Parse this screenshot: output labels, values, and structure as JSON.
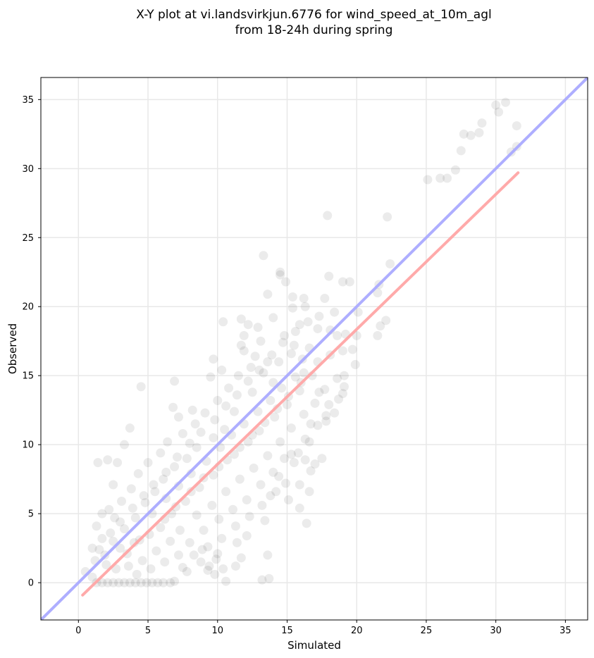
{
  "chart_data": {
    "type": "scatter",
    "title_line1": "X-Y plot at vi.landsvirkjun.6776 for wind_speed_at_10m_agl",
    "title_line2": "from 18-24h during spring",
    "xlabel": "Simulated",
    "ylabel": "Observed",
    "xlim": [
      -2.7,
      36.6
    ],
    "ylim": [
      -2.7,
      36.6
    ],
    "xticks": [
      0,
      5,
      10,
      15,
      20,
      25,
      30,
      35
    ],
    "yticks": [
      0,
      5,
      10,
      15,
      20,
      25,
      30,
      35
    ],
    "grid": true,
    "colors": {
      "points": "#000000",
      "identity_line": "#aaaaff",
      "fit_line": "#ffa5a5"
    },
    "identity_line": {
      "name": "",
      "x": [
        -2.7,
        36.6
      ],
      "y": [
        -2.7,
        36.6
      ]
    },
    "fit_line": {
      "name": "",
      "x": [
        0.3,
        31.6
      ],
      "y": [
        -0.9,
        29.7
      ]
    },
    "series": [
      {
        "name": "",
        "points": [
          [
            30.7,
            34.8
          ],
          [
            30.0,
            34.6
          ],
          [
            30.2,
            34.1
          ],
          [
            31.5,
            33.1
          ],
          [
            29.0,
            33.3
          ],
          [
            28.8,
            32.6
          ],
          [
            27.7,
            32.5
          ],
          [
            28.2,
            32.4
          ],
          [
            31.5,
            31.6
          ],
          [
            31.1,
            31.2
          ],
          [
            27.5,
            31.3
          ],
          [
            27.1,
            29.9
          ],
          [
            26.5,
            29.3
          ],
          [
            25.1,
            29.2
          ],
          [
            26.0,
            29.3
          ],
          [
            17.9,
            26.6
          ],
          [
            22.2,
            26.5
          ],
          [
            22.4,
            23.1
          ],
          [
            13.3,
            23.7
          ],
          [
            14.5,
            22.5
          ],
          [
            14.5,
            22.3
          ],
          [
            18.0,
            22.2
          ],
          [
            14.9,
            21.8
          ],
          [
            19.0,
            21.8
          ],
          [
            19.5,
            21.8
          ],
          [
            21.6,
            21.6
          ],
          [
            21.5,
            21.0
          ],
          [
            13.6,
            20.9
          ],
          [
            15.4,
            20.7
          ],
          [
            16.2,
            20.6
          ],
          [
            17.7,
            20.6
          ],
          [
            16.3,
            20.0
          ],
          [
            15.4,
            19.9
          ],
          [
            18.4,
            19.6
          ],
          [
            20.1,
            19.6
          ],
          [
            10.4,
            18.9
          ],
          [
            11.7,
            19.1
          ],
          [
            12.2,
            18.7
          ],
          [
            17.2,
            18.4
          ],
          [
            18.1,
            18.3
          ],
          [
            22.1,
            19.0
          ],
          [
            21.7,
            18.6
          ],
          [
            21.5,
            17.9
          ],
          [
            20.0,
            17.9
          ],
          [
            19.2,
            18.0
          ],
          [
            18.6,
            17.9
          ],
          [
            19.7,
            16.9
          ],
          [
            19.0,
            16.8
          ],
          [
            19.9,
            15.8
          ],
          [
            19.1,
            15.0
          ],
          [
            18.6,
            14.8
          ],
          [
            19.1,
            14.2
          ],
          [
            19.0,
            13.7
          ],
          [
            18.7,
            13.3
          ],
          [
            16.2,
            15.2
          ],
          [
            17.3,
            13.8
          ],
          [
            18.0,
            12.9
          ],
          [
            18.4,
            12.3
          ],
          [
            17.8,
            12.1
          ],
          [
            17.8,
            11.7
          ],
          [
            17.2,
            11.4
          ],
          [
            16.7,
            11.5
          ],
          [
            16.3,
            10.4
          ],
          [
            16.6,
            10.2
          ],
          [
            15.3,
            9.3
          ],
          [
            15.8,
            9.4
          ],
          [
            16.3,
            8.9
          ],
          [
            15.5,
            8.7
          ],
          [
            16.7,
            8.1
          ],
          [
            17.0,
            8.6
          ],
          [
            17.5,
            9.0
          ],
          [
            16.6,
            6.6
          ],
          [
            15.9,
            7.1
          ],
          [
            16.4,
            4.3
          ],
          [
            15.9,
            5.4
          ],
          [
            14.9,
            7.2
          ],
          [
            13.8,
            6.3
          ],
          [
            13.4,
            4.5
          ],
          [
            14.4,
            7.7
          ],
          [
            15.1,
            6.0
          ],
          [
            13.6,
            2.0
          ],
          [
            13.7,
            0.3
          ],
          [
            13.2,
            0.2
          ],
          [
            11.7,
            1.8
          ],
          [
            11.4,
            2.9
          ],
          [
            12.1,
            3.4
          ],
          [
            11.3,
            1.2
          ],
          [
            10.4,
            1.0
          ],
          [
            10.6,
            0.1
          ],
          [
            10.0,
            2.1
          ],
          [
            9.8,
            0.6
          ],
          [
            9.4,
            1.2
          ],
          [
            9.3,
            0.9
          ],
          [
            8.9,
            2.4
          ],
          [
            7.5,
            1.1
          ],
          [
            6.9,
            0.1
          ],
          [
            6.6,
            0.0
          ],
          [
            6.1,
            0.0
          ],
          [
            5.7,
            0.0
          ],
          [
            5.3,
            0.0
          ],
          [
            4.9,
            0.0
          ],
          [
            4.5,
            0.0
          ],
          [
            4.1,
            0.0
          ],
          [
            3.7,
            0.0
          ],
          [
            3.3,
            0.0
          ],
          [
            2.9,
            0.0
          ],
          [
            2.5,
            0.0
          ],
          [
            2.1,
            0.0
          ],
          [
            1.7,
            0.0
          ],
          [
            1.3,
            0.0
          ],
          [
            1.0,
            0.4
          ],
          [
            0.5,
            0.8
          ],
          [
            1.2,
            1.6
          ],
          [
            1.0,
            2.5
          ],
          [
            1.7,
            3.2
          ],
          [
            1.3,
            4.1
          ],
          [
            1.7,
            5.0
          ],
          [
            2.2,
            5.3
          ],
          [
            2.5,
            7.1
          ],
          [
            2.1,
            8.9
          ],
          [
            1.4,
            8.7
          ],
          [
            2.8,
            8.7
          ],
          [
            3.3,
            10.0
          ],
          [
            3.7,
            11.2
          ],
          [
            4.5,
            14.2
          ],
          [
            6.9,
            14.6
          ],
          [
            7.2,
            12.0
          ],
          [
            6.8,
            12.7
          ],
          [
            8.2,
            12.5
          ],
          [
            9.5,
            14.9
          ],
          [
            9.7,
            16.2
          ],
          [
            10.3,
            15.4
          ],
          [
            11.7,
            17.2
          ],
          [
            11.9,
            16.8
          ],
          [
            12.7,
            16.4
          ],
          [
            13.1,
            17.5
          ],
          [
            13.6,
            16.0
          ],
          [
            14.0,
            14.5
          ],
          [
            14.8,
            17.9
          ],
          [
            15.5,
            17.2
          ],
          [
            16.6,
            17.0
          ],
          [
            12.5,
            13.8
          ],
          [
            11.2,
            12.4
          ],
          [
            10.5,
            11.1
          ],
          [
            9.7,
            10.5
          ],
          [
            8.5,
            9.8
          ],
          [
            7.8,
            9.0
          ],
          [
            6.9,
            8.4
          ],
          [
            6.1,
            7.5
          ],
          [
            5.5,
            6.6
          ],
          [
            4.8,
            5.8
          ],
          [
            4.1,
            4.7
          ],
          [
            3.3,
            3.9
          ],
          [
            2.5,
            3.0
          ],
          [
            1.9,
            2.0
          ],
          [
            3.0,
            2.5
          ],
          [
            4.0,
            2.9
          ],
          [
            5.1,
            3.5
          ],
          [
            6.2,
            4.6
          ],
          [
            7.0,
            5.5
          ],
          [
            8.1,
            6.6
          ],
          [
            9.0,
            7.6
          ],
          [
            10.1,
            8.4
          ],
          [
            11.2,
            9.3
          ],
          [
            12.2,
            10.2
          ],
          [
            13.0,
            11.0
          ],
          [
            14.1,
            12.0
          ],
          [
            15.0,
            12.9
          ],
          [
            15.9,
            13.9
          ],
          [
            16.8,
            15.0
          ],
          [
            5.9,
            9.4
          ],
          [
            5.0,
            8.7
          ],
          [
            4.3,
            7.9
          ],
          [
            3.8,
            6.8
          ],
          [
            3.1,
            5.9
          ],
          [
            2.6,
            4.7
          ],
          [
            6.4,
            10.2
          ],
          [
            7.5,
            10.8
          ],
          [
            8.4,
            11.5
          ],
          [
            9.1,
            12.3
          ],
          [
            10.0,
            13.2
          ],
          [
            10.8,
            14.1
          ],
          [
            11.5,
            15.0
          ],
          [
            12.4,
            15.6
          ],
          [
            13.3,
            15.2
          ],
          [
            14.4,
            16.0
          ],
          [
            15.3,
            16.6
          ],
          [
            16.1,
            16.2
          ],
          [
            17.2,
            16.0
          ],
          [
            18.1,
            16.5
          ],
          [
            7.3,
            3.8
          ],
          [
            8.5,
            4.9
          ],
          [
            9.6,
            5.6
          ],
          [
            10.6,
            6.6
          ],
          [
            11.6,
            7.5
          ],
          [
            12.6,
            8.3
          ],
          [
            13.6,
            9.2
          ],
          [
            14.5,
            10.2
          ],
          [
            15.3,
            11.2
          ],
          [
            16.2,
            12.2
          ],
          [
            17.0,
            13.0
          ],
          [
            17.7,
            14.0
          ],
          [
            8.0,
            2.9
          ],
          [
            9.0,
            3.8
          ],
          [
            10.1,
            4.6
          ],
          [
            11.1,
            5.3
          ],
          [
            12.1,
            6.0
          ],
          [
            13.1,
            7.1
          ],
          [
            14.0,
            8.0
          ],
          [
            14.8,
            9.0
          ],
          [
            5.6,
            2.3
          ],
          [
            6.6,
            3.0
          ],
          [
            4.6,
            1.6
          ],
          [
            3.6,
            1.2
          ],
          [
            2.7,
            1.0
          ],
          [
            5.3,
            5.0
          ],
          [
            6.3,
            6.1
          ],
          [
            7.2,
            7.0
          ],
          [
            8.1,
            7.9
          ],
          [
            9.2,
            8.8
          ],
          [
            10.2,
            9.8
          ],
          [
            11.0,
            10.7
          ],
          [
            11.9,
            11.5
          ],
          [
            12.9,
            12.4
          ],
          [
            13.8,
            13.2
          ],
          [
            14.6,
            14.1
          ],
          [
            15.6,
            14.9
          ],
          [
            2.0,
            1.3
          ],
          [
            3.5,
            2.1
          ],
          [
            4.4,
            3.1
          ],
          [
            5.9,
            4.0
          ],
          [
            6.7,
            5.0
          ],
          [
            7.7,
            5.9
          ],
          [
            8.7,
            6.9
          ],
          [
            9.7,
            7.8
          ],
          [
            10.7,
            8.9
          ],
          [
            11.6,
            9.8
          ],
          [
            12.5,
            10.7
          ],
          [
            13.4,
            11.6
          ],
          [
            14.3,
            12.6
          ],
          [
            15.1,
            13.5
          ],
          [
            16.0,
            14.5
          ],
          [
            1.5,
            2.4
          ],
          [
            2.3,
            3.6
          ],
          [
            3.0,
            4.4
          ],
          [
            3.9,
            5.4
          ],
          [
            4.7,
            6.3
          ],
          [
            5.4,
            7.1
          ],
          [
            6.3,
            8.0
          ],
          [
            7.1,
            9.1
          ],
          [
            8.0,
            10.1
          ],
          [
            8.8,
            10.9
          ],
          [
            9.8,
            11.8
          ],
          [
            10.6,
            12.8
          ],
          [
            11.4,
            13.6
          ],
          [
            12.2,
            14.6
          ],
          [
            13.0,
            15.4
          ],
          [
            13.9,
            16.5
          ],
          [
            14.7,
            17.4
          ],
          [
            15.6,
            18.2
          ],
          [
            16.5,
            18.9
          ],
          [
            17.3,
            19.3
          ],
          [
            11.9,
            17.9
          ],
          [
            12.9,
            18.5
          ],
          [
            14.0,
            19.2
          ],
          [
            15.9,
            18.7
          ],
          [
            4.2,
            0.6
          ],
          [
            5.2,
            1.0
          ],
          [
            6.2,
            1.5
          ],
          [
            7.2,
            2.0
          ],
          [
            8.3,
            2.0
          ],
          [
            9.3,
            2.6
          ],
          [
            10.3,
            3.2
          ],
          [
            11.3,
            4.1
          ],
          [
            12.3,
            4.8
          ],
          [
            13.2,
            5.6
          ],
          [
            14.2,
            6.6
          ],
          [
            7.8,
            0.8
          ],
          [
            8.8,
            1.5
          ],
          [
            9.9,
            1.7
          ]
        ]
      }
    ]
  }
}
